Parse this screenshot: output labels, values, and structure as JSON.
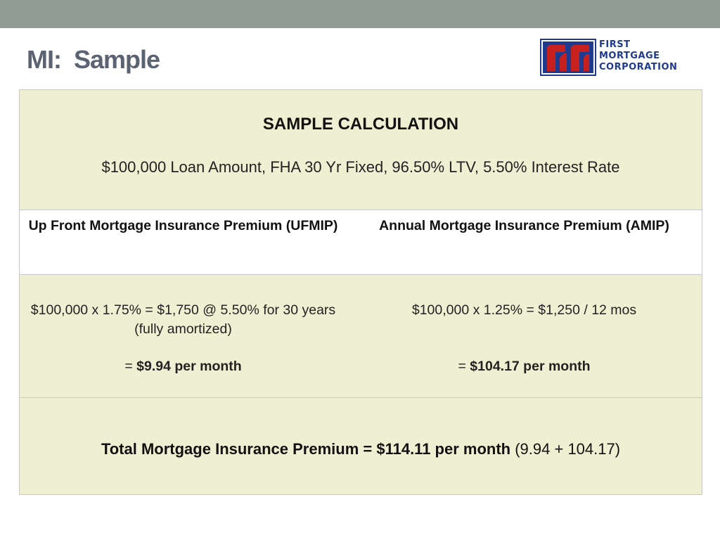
{
  "slide": {
    "title": "MI:  Sample"
  },
  "logo": {
    "line1": "FIRST",
    "line2": "MORTGAGE",
    "line3": "CORPORATION",
    "accent_color": "#1f3a8e",
    "mark_color": "#c8201f"
  },
  "table": {
    "heading": "SAMPLE CALCULATION",
    "subheading": "$100,000 Loan Amount, FHA 30 Yr Fixed, 96.50% LTV, 5.50% Interest Rate",
    "ufmip": {
      "header": "Up Front Mortgage Insurance Premium (UFMIP)",
      "calculation": "$100,000 x 1.75% = $1,750 @ 5.50% for 30 years (fully amortized)",
      "result_prefix": "= ",
      "result_value": "$9.94 per month"
    },
    "amip": {
      "header": "Annual Mortgage Insurance Premium (AMIP)",
      "calculation": "$100,000 x 1.25% = $1,250 / 12 mos",
      "result_prefix": "= ",
      "result_value": "$104.17 per month"
    },
    "total": {
      "label": "Total Mortgage Insurance Premium = $114.11 per month",
      "detail": " (9.94 + 104.17)"
    }
  },
  "colors": {
    "top_bar": "#909d97",
    "title": "#5b6372",
    "band": "#eff0d3",
    "border": "#c9c9c9"
  }
}
